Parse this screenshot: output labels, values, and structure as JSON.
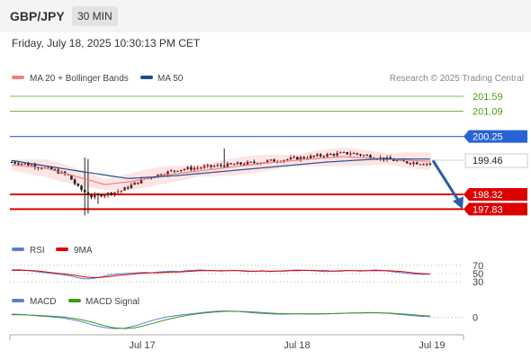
{
  "header": {
    "symbol": "GBP/JPY",
    "timeframe": "30 MIN"
  },
  "datetime": "Friday, July 18, 2025 10:30:13 PM CET",
  "legend": {
    "price": [
      {
        "label": "MA 20 + Bollinger Bands",
        "color": "#f08080"
      },
      {
        "label": "MA 50",
        "color": "#1f4e8c"
      }
    ],
    "rsi": [
      {
        "label": "RSI",
        "color": "#5b7fd6"
      },
      {
        "label": "9MA",
        "color": "#e00000"
      }
    ],
    "macd": [
      {
        "label": "MACD",
        "color": "#5b7fd6"
      },
      {
        "label": "MACD Signal",
        "color": "#3a9a1a"
      }
    ]
  },
  "credit": "Research © 2025 Trading Central",
  "colors": {
    "up": "#8a1e1e",
    "down": "#222222",
    "resistance": "#4aa01a",
    "pivot": "#2962d4",
    "support": "#dd0000",
    "last": "#222222"
  },
  "chart_data": [
    {
      "type": "candlestick",
      "title": "GBP/JPY 30 MIN",
      "ylim": [
        197.6,
        201.8
      ],
      "levels": [
        {
          "label": "201.59",
          "value": 201.59,
          "kind": "resistance"
        },
        {
          "label": "201.09",
          "value": 201.09,
          "kind": "resistance"
        },
        {
          "label": "200.25",
          "value": 200.25,
          "kind": "pivot"
        },
        {
          "label": "199.46",
          "value": 199.46,
          "kind": "last"
        },
        {
          "label": "198.32",
          "value": 198.32,
          "kind": "support"
        },
        {
          "label": "197.83",
          "value": 197.83,
          "kind": "support"
        }
      ],
      "x_ticks": [
        "Jul 17",
        "Jul 18",
        "Jul 19"
      ],
      "close_path": [
        [
          0,
          199.4
        ],
        [
          6,
          199.3
        ],
        [
          12,
          199.15
        ],
        [
          17,
          198.95
        ],
        [
          20,
          198.55
        ],
        [
          24,
          198.25
        ],
        [
          29,
          198.35
        ],
        [
          33,
          198.45
        ],
        [
          40,
          198.85
        ],
        [
          50,
          199.15
        ],
        [
          60,
          199.25
        ],
        [
          75,
          199.4
        ],
        [
          88,
          199.55
        ],
        [
          96,
          199.65
        ],
        [
          102,
          199.7
        ],
        [
          110,
          199.55
        ],
        [
          118,
          199.4
        ],
        [
          126,
          199.35
        ]
      ],
      "ma20_path": [
        [
          0,
          199.3
        ],
        [
          10,
          199.2
        ],
        [
          20,
          198.9
        ],
        [
          28,
          198.65
        ],
        [
          36,
          198.75
        ],
        [
          45,
          198.95
        ],
        [
          60,
          199.15
        ],
        [
          75,
          199.35
        ],
        [
          90,
          199.5
        ],
        [
          100,
          199.58
        ],
        [
          110,
          199.52
        ],
        [
          126,
          199.42
        ]
      ],
      "ma50_path": [
        [
          0,
          199.45
        ],
        [
          20,
          199.1
        ],
        [
          35,
          198.85
        ],
        [
          50,
          198.95
        ],
        [
          65,
          199.1
        ],
        [
          80,
          199.25
        ],
        [
          95,
          199.4
        ],
        [
          110,
          199.5
        ],
        [
          126,
          199.5
        ]
      ],
      "forecast": {
        "from": 199.45,
        "to": 197.83
      }
    },
    {
      "type": "line",
      "title": "RSI",
      "ylim": [
        28,
        72
      ],
      "y_ticks": [
        70,
        50,
        30
      ],
      "series": [
        {
          "name": "RSI",
          "values": [
            59,
            60,
            58,
            56,
            54,
            52,
            50,
            48,
            46,
            42,
            38,
            37,
            39,
            43,
            47,
            49,
            50,
            51,
            52,
            53,
            52,
            54,
            55,
            56,
            55,
            57,
            58,
            59,
            58,
            57,
            56,
            57,
            58,
            56,
            55,
            56,
            57,
            55,
            56,
            57,
            58,
            59,
            58,
            57,
            56,
            55,
            56,
            57,
            58,
            57,
            56,
            57,
            59,
            58,
            56,
            54,
            52,
            50,
            49,
            48,
            49
          ]
        },
        {
          "name": "9MA",
          "values": [
            58,
            58,
            58,
            57,
            56,
            54,
            52,
            50,
            48,
            46,
            43,
            41,
            40,
            41,
            43,
            45,
            47,
            48,
            50,
            51,
            52,
            52,
            53,
            54,
            54,
            55,
            56,
            57,
            57,
            57,
            57,
            57,
            57,
            57,
            56,
            56,
            56,
            56,
            56,
            56,
            57,
            57,
            58,
            58,
            57,
            57,
            56,
            56,
            57,
            57,
            57,
            57,
            57,
            57,
            57,
            56,
            55,
            53,
            51,
            50,
            49
          ]
        }
      ]
    },
    {
      "type": "line",
      "title": "MACD",
      "ylim": [
        -0.5,
        0.3
      ],
      "y_ticks": [
        0
      ],
      "series": [
        {
          "name": "MACD",
          "values": [
            0.1,
            0.09,
            0.06,
            0.03,
            0.01,
            -0.02,
            -0.08,
            -0.15,
            -0.25,
            -0.32,
            -0.36,
            -0.35,
            -0.28,
            -0.18,
            -0.08,
            0.0,
            0.05,
            0.09,
            0.12,
            0.16,
            0.19,
            0.2,
            0.19,
            0.16,
            0.13,
            0.11,
            0.1,
            0.1,
            0.11,
            0.1,
            0.1,
            0.11,
            0.12,
            0.13,
            0.14,
            0.15,
            0.14,
            0.12,
            0.09,
            0.06,
            0.03,
            0.02
          ]
        },
        {
          "name": "MACD Signal",
          "values": [
            0.08,
            0.08,
            0.07,
            0.05,
            0.03,
            0.01,
            -0.03,
            -0.09,
            -0.17,
            -0.26,
            -0.33,
            -0.36,
            -0.34,
            -0.27,
            -0.18,
            -0.09,
            -0.01,
            0.05,
            0.1,
            0.14,
            0.17,
            0.19,
            0.19,
            0.18,
            0.16,
            0.14,
            0.12,
            0.11,
            0.11,
            0.11,
            0.11,
            0.11,
            0.12,
            0.13,
            0.13,
            0.14,
            0.14,
            0.13,
            0.11,
            0.09,
            0.06,
            0.04
          ]
        }
      ]
    }
  ]
}
